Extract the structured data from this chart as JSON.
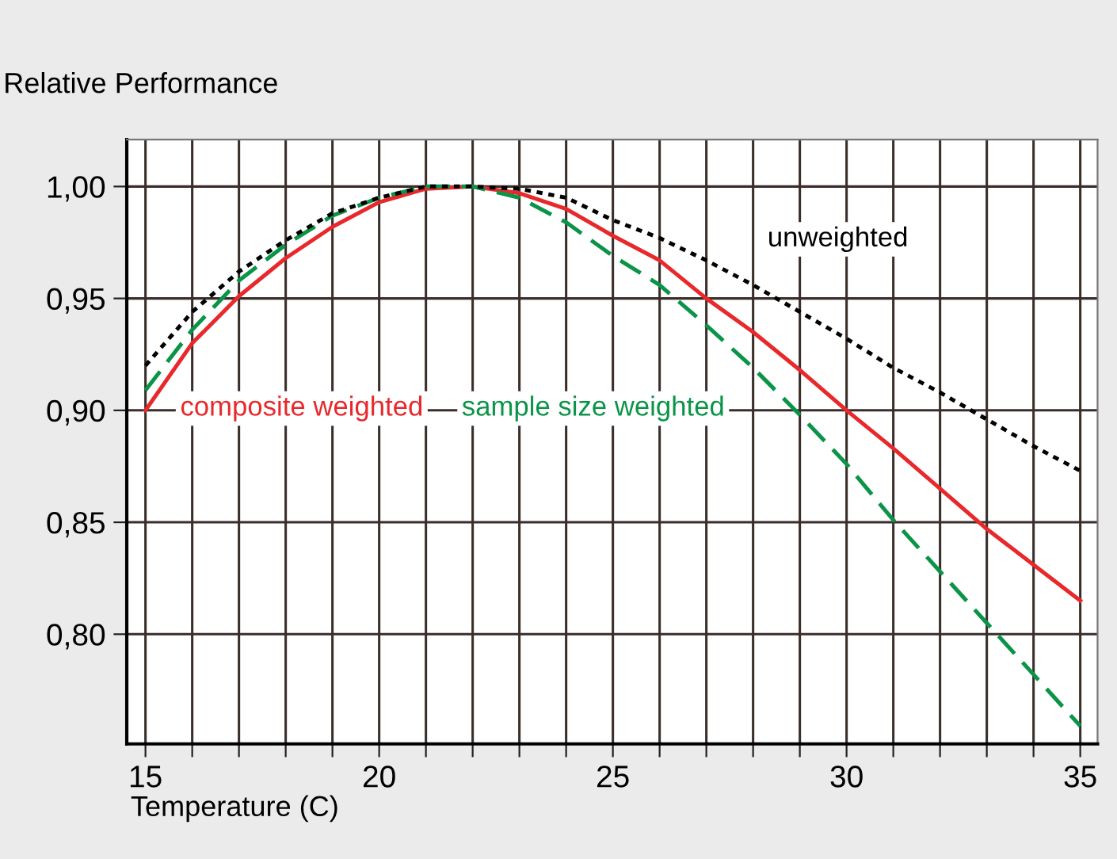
{
  "chart_data": {
    "type": "line",
    "ylabel": "Relative Performance",
    "xlabel": "Temperature (C)",
    "x": [
      15,
      16,
      17,
      18,
      19,
      20,
      21,
      22,
      23,
      24,
      25,
      26,
      27,
      28,
      29,
      30,
      31,
      32,
      33,
      34,
      35
    ],
    "series": [
      {
        "name": "composite weighted",
        "color": "#e8282b",
        "line_style": "solid",
        "values": [
          0.9,
          0.93,
          0.951,
          0.968,
          0.982,
          0.993,
          0.999,
          1.0,
          0.997,
          0.99,
          0.978,
          0.967,
          0.95,
          0.935,
          0.918,
          0.9,
          0.883,
          0.865,
          0.847,
          0.831,
          0.815
        ]
      },
      {
        "name": "sample size weighted",
        "color": "#0a9447",
        "line_style": "dashed",
        "values": [
          0.909,
          0.936,
          0.958,
          0.974,
          0.987,
          0.995,
          1.0,
          1.0,
          0.995,
          0.984,
          0.969,
          0.956,
          0.938,
          0.919,
          0.898,
          0.876,
          0.851,
          0.828,
          0.805,
          0.782,
          0.759
        ]
      },
      {
        "name": "unweighted",
        "color": "#000000",
        "line_style": "dotted",
        "values": [
          0.92,
          0.944,
          0.962,
          0.976,
          0.988,
          0.995,
          1.0,
          1.0,
          0.999,
          0.995,
          0.985,
          0.977,
          0.967,
          0.956,
          0.944,
          0.932,
          0.919,
          0.908,
          0.896,
          0.884,
          0.873
        ]
      }
    ],
    "xlim": [
      14.6,
      35.37
    ],
    "ylim": [
      0.751,
      1.021
    ],
    "xticks": [
      15,
      {
        "value": 16,
        "label": null
      },
      {
        "value": 17,
        "label": null
      },
      {
        "value": 18,
        "label": null
      },
      {
        "value": 19,
        "label": null
      },
      20,
      {
        "value": 21,
        "label": null
      },
      {
        "value": 22,
        "label": null
      },
      {
        "value": 23,
        "label": null
      },
      {
        "value": 24,
        "label": null
      },
      25,
      {
        "value": 26,
        "label": null
      },
      {
        "value": 27,
        "label": null
      },
      {
        "value": 28,
        "label": null
      },
      {
        "value": 29,
        "label": null
      },
      30,
      {
        "value": 31,
        "label": null
      },
      {
        "value": 32,
        "label": null
      },
      {
        "value": 33,
        "label": null
      },
      {
        "value": 34,
        "label": null
      },
      35
    ],
    "yticks": [
      {
        "value": 0.8,
        "label": "0,80"
      },
      {
        "value": 0.85,
        "label": "0,85"
      },
      {
        "value": 0.9,
        "label": "0,90"
      },
      {
        "value": 0.95,
        "label": "0,95"
      },
      {
        "value": 1.0,
        "label": "1,00"
      }
    ],
    "grid": true,
    "legend": false
  }
}
